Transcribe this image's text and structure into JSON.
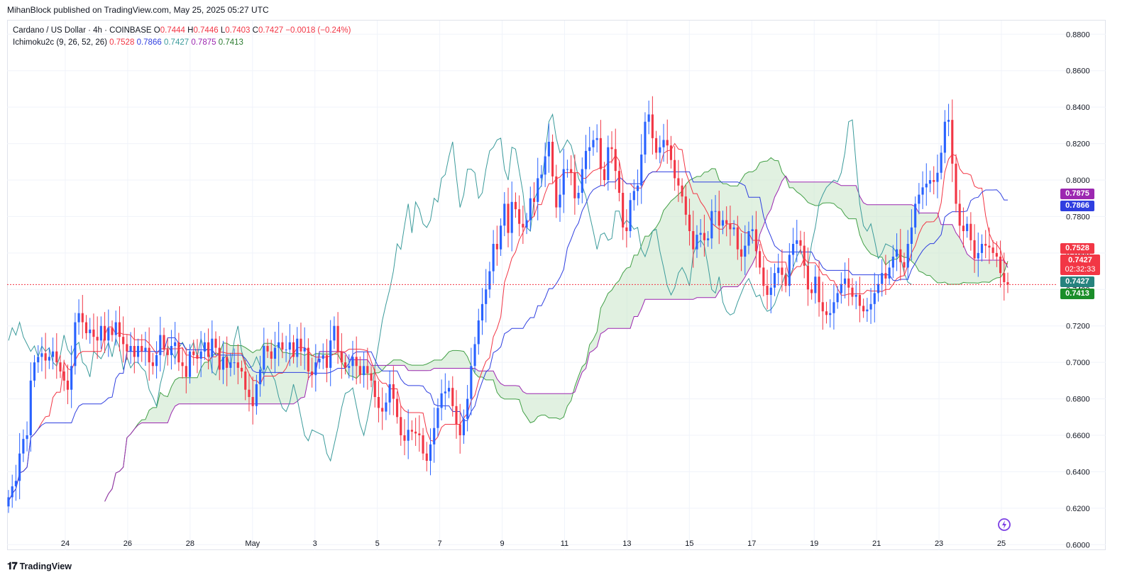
{
  "publisher": "MihanBlock published on TradingView.com, May 25, 2025 05:27 UTC",
  "legend": {
    "symbol": "Cardano / US Dollar · 4h · COINBASE",
    "ohlc": {
      "o_label": "O",
      "o": "0.7444",
      "h_label": "H",
      "h": "0.7446",
      "l_label": "L",
      "l": "0.7403",
      "c_label": "C",
      "c": "0.7427",
      "change": "−0.0018 (−0.24%)"
    },
    "indicator": "Ichimoku2c (9, 26, 52, 26)",
    "indicator_values": [
      "0.7528",
      "0.7866",
      "0.7427",
      "0.7875",
      "0.7413"
    ]
  },
  "footer": {
    "brand": "TradingView"
  },
  "price_labels": {
    "senkou_b": "0.7875",
    "kijun": "0.7866",
    "tenkan": "0.7528",
    "last": "0.7427",
    "countdown": "02:32:33",
    "chikou": "0.7427",
    "senkou_a": "0.7413"
  },
  "colors": {
    "up": "#2962ff",
    "down": "#f23645",
    "tenkan": "#f23645",
    "kijun": "#2f3fe0",
    "chikou": "#3b9b9b",
    "senkou_a": "#43a047",
    "senkou_b": "#9c27b0",
    "cloud": "#c8e6c9"
  },
  "chart_data": {
    "type": "candlestick",
    "title": "Cardano / US Dollar · 4h · COINBASE",
    "ylim": [
      0.597,
      0.8875
    ],
    "y_ticks": [
      "0.8800",
      "0.8600",
      "0.8400",
      "0.8200",
      "0.8000",
      "0.7800",
      "0.7600",
      "0.7400",
      "0.7200",
      "0.7000",
      "0.6800",
      "0.6600",
      "0.6400",
      "0.6200",
      "0.6000"
    ],
    "x_ticks": [
      "24",
      "26",
      "28",
      "May",
      "3",
      "5",
      "7",
      "9",
      "11",
      "13",
      "15",
      "17",
      "19",
      "21",
      "23",
      "25"
    ],
    "grid": true,
    "last_price": 0.7427,
    "series_close": [
      0.626,
      0.632,
      0.635,
      0.65,
      0.658,
      0.66,
      0.69,
      0.7,
      0.703,
      0.705,
      0.701,
      0.703,
      0.706,
      0.7,
      0.695,
      0.69,
      0.685,
      0.698,
      0.722,
      0.727,
      0.722,
      0.716,
      0.718,
      0.714,
      0.712,
      0.72,
      0.712,
      0.719,
      0.715,
      0.722,
      0.714,
      0.71,
      0.706,
      0.709,
      0.703,
      0.709,
      0.706,
      0.708,
      0.7,
      0.698,
      0.704,
      0.715,
      0.707,
      0.704,
      0.709,
      0.711,
      0.7,
      0.698,
      0.692,
      0.706,
      0.704,
      0.702,
      0.706,
      0.711,
      0.703,
      0.713,
      0.708,
      0.696,
      0.703,
      0.697,
      0.7,
      0.7,
      0.697,
      0.695,
      0.685,
      0.681,
      0.676,
      0.688,
      0.696,
      0.709,
      0.706,
      0.702,
      0.708,
      0.711,
      0.707,
      0.707,
      0.711,
      0.703,
      0.713,
      0.706,
      0.708,
      0.695,
      0.693,
      0.7,
      0.702,
      0.704,
      0.697,
      0.712,
      0.72,
      0.706,
      0.7,
      0.697,
      0.698,
      0.703,
      0.698,
      0.693,
      0.698,
      0.694,
      0.69,
      0.681,
      0.675,
      0.673,
      0.678,
      0.688,
      0.68,
      0.67,
      0.66,
      0.657,
      0.663,
      0.662,
      0.661,
      0.66,
      0.65,
      0.646,
      0.655,
      0.664,
      0.675,
      0.683,
      0.684,
      0.686,
      0.676,
      0.666,
      0.66,
      0.669,
      0.68,
      0.698,
      0.71,
      0.723,
      0.732,
      0.74,
      0.75,
      0.765,
      0.762,
      0.775,
      0.787,
      0.771,
      0.788,
      0.784,
      0.776,
      0.774,
      0.778,
      0.79,
      0.788,
      0.801,
      0.803,
      0.813,
      0.821,
      0.802,
      0.785,
      0.792,
      0.806,
      0.806,
      0.804,
      0.79,
      0.793,
      0.806,
      0.816,
      0.818,
      0.822,
      0.823,
      0.806,
      0.8,
      0.818,
      0.817,
      0.805,
      0.793,
      0.774,
      0.772,
      0.789,
      0.794,
      0.797,
      0.814,
      0.832,
      0.836,
      0.823,
      0.815,
      0.818,
      0.822,
      0.819,
      0.811,
      0.801,
      0.797,
      0.791,
      0.781,
      0.772,
      0.762,
      0.77,
      0.771,
      0.767,
      0.768,
      0.783,
      0.783,
      0.775,
      0.778,
      0.776,
      0.773,
      0.774,
      0.762,
      0.758,
      0.764,
      0.772,
      0.773,
      0.761,
      0.752,
      0.742,
      0.737,
      0.741,
      0.749,
      0.752,
      0.748,
      0.742,
      0.759,
      0.765,
      0.767,
      0.764,
      0.753,
      0.74,
      0.738,
      0.747,
      0.733,
      0.728,
      0.726,
      0.727,
      0.733,
      0.738,
      0.743,
      0.746,
      0.741,
      0.736,
      0.737,
      0.731,
      0.728,
      0.729,
      0.732,
      0.738,
      0.743,
      0.749,
      0.746,
      0.752,
      0.758,
      0.762,
      0.755,
      0.752,
      0.765,
      0.774,
      0.787,
      0.792,
      0.796,
      0.798,
      0.8,
      0.799,
      0.804,
      0.815,
      0.832,
      0.833,
      0.809,
      0.787,
      0.775,
      0.772,
      0.776,
      0.767,
      0.757,
      0.76,
      0.765,
      0.764,
      0.763,
      0.76,
      0.758,
      0.749,
      0.744,
      0.7427
    ]
  }
}
